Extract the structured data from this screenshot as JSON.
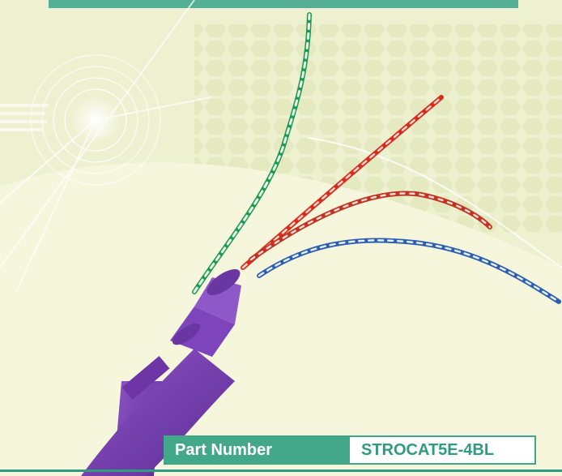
{
  "part": {
    "label": "Part Number",
    "value": "STROCAT5E-4BL"
  },
  "colors": {
    "background": "#eef2cf",
    "accent": "#43a889",
    "cable_jacket": "#7a3fb0",
    "title_text": "#2f9b80"
  },
  "image": {
    "subject_icon": "cat5e-cable-icon"
  }
}
